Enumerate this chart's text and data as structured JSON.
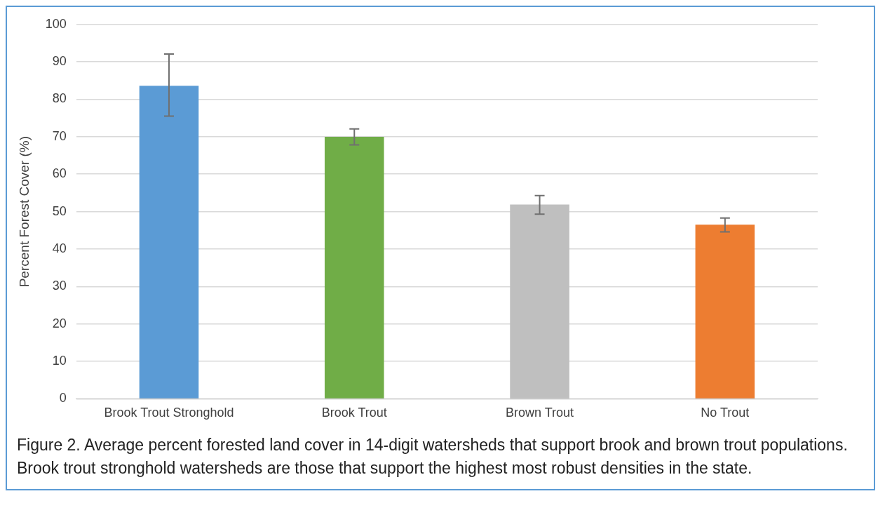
{
  "chart_data": {
    "type": "bar",
    "ylabel": "Percent Forest Cover (%)",
    "categories": [
      "Brook Trout Stronghold",
      "Brook Trout",
      "Brown Trout",
      "No Trout"
    ],
    "values": [
      83.6,
      70.0,
      51.9,
      46.5
    ],
    "colors": [
      "#5b9bd5",
      "#70ad47",
      "#bfbfbf",
      "#ed7d31"
    ],
    "errors": [
      [
        75.5,
        92.1
      ],
      [
        67.8,
        72.1
      ],
      [
        49.3,
        54.3
      ],
      [
        44.6,
        48.3
      ]
    ],
    "ylim": [
      0,
      100
    ],
    "yticks": [
      0,
      10,
      20,
      30,
      40,
      50,
      60,
      70,
      80,
      90,
      100
    ],
    "grid": "y",
    "annotations": [
      "Figure 2.  Average percent forested land cover in 14-digit watersheds that support brook and brown trout populations.  Brook trout stronghold watersheds are those that support the highest most robust densities in the state."
    ]
  }
}
